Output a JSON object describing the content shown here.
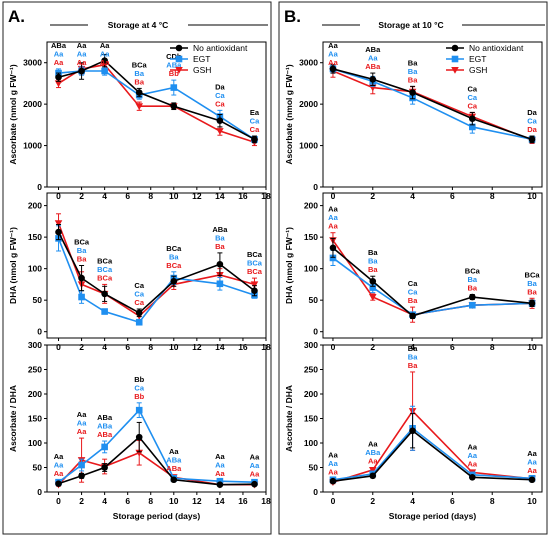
{
  "colors": {
    "no_antioxidant": "#000000",
    "egt": "#1f8ff0",
    "gsh": "#e8191c"
  },
  "panels": [
    {
      "label": "A.",
      "header": "Storage at 4 °C"
    },
    {
      "label": "B.",
      "header": "Storage at 10 °C"
    }
  ],
  "chart_data": [
    {
      "type": "line",
      "panel": "A.",
      "title": "Storage at 4 °C",
      "xlabel": "",
      "ylabel": "Ascorbate (nmol g FW⁻¹)",
      "xlim": [
        -1,
        18
      ],
      "ylim": [
        0,
        3500
      ],
      "xticks": [
        0,
        2,
        4,
        6,
        8,
        10,
        12,
        14,
        16,
        18
      ],
      "yticks": [
        0,
        1000,
        2000,
        3000
      ],
      "x": [
        0,
        2,
        4,
        7,
        10,
        14,
        17
      ],
      "legend": "top-right",
      "series": [
        {
          "name": "No antioxidant",
          "color": "#000000",
          "marker": "circle",
          "values": [
            2650,
            2800,
            3050,
            2280,
            1950,
            1600,
            1150
          ],
          "errors": [
            100,
            200,
            150,
            100,
            80,
            150,
            80
          ]
        },
        {
          "name": "EGT",
          "color": "#1f8ff0",
          "marker": "square",
          "values": [
            2750,
            2800,
            2800,
            2220,
            2400,
            1700,
            1150
          ],
          "errors": [
            100,
            100,
            100,
            100,
            180,
            150,
            80
          ]
        },
        {
          "name": "GSH",
          "color": "#e8191c",
          "marker": "triangle-down",
          "values": [
            2500,
            2850,
            2950,
            1950,
            1950,
            1350,
            1080
          ],
          "errors": [
            100,
            120,
            100,
            100,
            60,
            100,
            80
          ]
        }
      ],
      "annotations": [
        {
          "x": 0,
          "labels": [
            "ABa",
            "Aa",
            "Aa"
          ]
        },
        {
          "x": 2,
          "labels": [
            "Aa",
            "Aa",
            "Aa"
          ]
        },
        {
          "x": 4,
          "labels": [
            "Aa",
            "Aa",
            "Aa"
          ]
        },
        {
          "x": 7,
          "labels": [
            "BCa",
            "Ba",
            "Ba"
          ]
        },
        {
          "x": 10,
          "labels": [
            "CDb",
            "ABa",
            "Bb"
          ]
        },
        {
          "x": 14,
          "labels": [
            "Da",
            "Ca",
            "Ca"
          ]
        },
        {
          "x": 17,
          "labels": [
            "Ea",
            "Ca",
            "Ca"
          ]
        }
      ]
    },
    {
      "type": "line",
      "panel": "A.",
      "xlabel": "",
      "ylabel": "DHA (nmol g FW⁻¹)",
      "xlim": [
        -1,
        18
      ],
      "ylim": [
        -10,
        220
      ],
      "xticks": [
        0,
        2,
        4,
        6,
        8,
        10,
        12,
        14,
        16,
        18
      ],
      "yticks": [
        0,
        50,
        100,
        150,
        200
      ],
      "x": [
        0,
        2,
        4,
        7,
        10,
        14,
        17
      ],
      "series": [
        {
          "name": "No antioxidant",
          "color": "#000000",
          "marker": "circle",
          "values": [
            158,
            85,
            60,
            30,
            80,
            107,
            65
          ],
          "errors": [
            12,
            20,
            12,
            6,
            8,
            18,
            8
          ]
        },
        {
          "name": "EGT",
          "color": "#1f8ff0",
          "marker": "square",
          "values": [
            148,
            55,
            32,
            15,
            85,
            76,
            58
          ],
          "errors": [
            20,
            10,
            4,
            4,
            10,
            10,
            5
          ]
        },
        {
          "name": "GSH",
          "color": "#e8191c",
          "marker": "triangle-down",
          "values": [
            172,
            75,
            60,
            25,
            75,
            90,
            75
          ],
          "errors": [
            15,
            20,
            15,
            6,
            8,
            10,
            10
          ]
        }
      ],
      "annotations": [
        {
          "x": 2,
          "labels": [
            "BCa",
            "Ba",
            "Ba"
          ]
        },
        {
          "x": 4,
          "labels": [
            "BCa",
            "BCa",
            "BCa"
          ]
        },
        {
          "x": 7,
          "labels": [
            "Ca",
            "Ca",
            "Ca"
          ]
        },
        {
          "x": 10,
          "labels": [
            "BCa",
            "Ba",
            "BCa"
          ]
        },
        {
          "x": 14,
          "labels": [
            "ABa",
            "Ba",
            "Ba"
          ]
        },
        {
          "x": 17,
          "labels": [
            "BCa",
            "BCa",
            "BCa"
          ]
        }
      ]
    },
    {
      "type": "line",
      "panel": "A.",
      "xlabel": "Storage period (days)",
      "ylabel": "Ascorbate / DHA",
      "xlim": [
        -1,
        18
      ],
      "ylim": [
        0,
        300
      ],
      "xticks": [
        0,
        2,
        4,
        6,
        8,
        10,
        12,
        14,
        16,
        18
      ],
      "yticks": [
        0,
        50,
        100,
        150,
        200,
        250,
        300
      ],
      "x": [
        0,
        2,
        4,
        7,
        10,
        14,
        17
      ],
      "series": [
        {
          "name": "No antioxidant",
          "color": "#000000",
          "marker": "circle",
          "values": [
            17,
            33,
            50,
            112,
            25,
            15,
            16
          ],
          "errors": [
            3,
            5,
            8,
            30,
            3,
            2,
            2
          ]
        },
        {
          "name": "EGT",
          "color": "#1f8ff0",
          "marker": "square",
          "values": [
            20,
            55,
            92,
            167,
            28,
            22,
            20
          ],
          "errors": [
            4,
            12,
            12,
            15,
            4,
            3,
            3
          ]
        },
        {
          "name": "GSH",
          "color": "#e8191c",
          "marker": "triangle-down",
          "values": [
            15,
            65,
            52,
            80,
            30,
            15,
            15
          ],
          "errors": [
            3,
            45,
            15,
            25,
            5,
            2,
            2
          ]
        }
      ],
      "annotations": [
        {
          "x": 0,
          "labels": [
            "Aa",
            "Aa",
            "Aa"
          ]
        },
        {
          "x": 2,
          "labels": [
            "Aa",
            "Aa",
            "Aa"
          ]
        },
        {
          "x": 4,
          "labels": [
            "ABa",
            "ABa",
            "ABa"
          ]
        },
        {
          "x": 7,
          "labels": [
            "Bb",
            "Ca",
            "Bb"
          ]
        },
        {
          "x": 10,
          "labels": [
            "Aa",
            "ABa",
            "ABa"
          ]
        },
        {
          "x": 14,
          "labels": [
            "Aa",
            "Aa",
            "Aa"
          ]
        },
        {
          "x": 17,
          "labels": [
            "Aa",
            "Aa",
            "Aa"
          ]
        }
      ]
    },
    {
      "type": "line",
      "panel": "B.",
      "title": "Storage at 10 °C",
      "xlabel": "",
      "ylabel": "Ascorbate (nmol g FW⁻¹)",
      "xlim": [
        -0.5,
        10.5
      ],
      "ylim": [
        0,
        3500
      ],
      "xticks": [
        0,
        2,
        4,
        6,
        8,
        10
      ],
      "yticks": [
        0,
        1000,
        2000,
        3000
      ],
      "x": [
        0,
        2,
        4,
        7,
        10
      ],
      "legend": "top-right",
      "series": [
        {
          "name": "No antioxidant",
          "color": "#000000",
          "marker": "circle",
          "values": [
            2850,
            2600,
            2280,
            1650,
            1150
          ],
          "errors": [
            100,
            150,
            150,
            150,
            80
          ]
        },
        {
          "name": "EGT",
          "color": "#1f8ff0",
          "marker": "square",
          "values": [
            2850,
            2550,
            2150,
            1450,
            1150
          ],
          "errors": [
            100,
            120,
            150,
            150,
            80
          ]
        },
        {
          "name": "GSH",
          "color": "#e8191c",
          "marker": "triangle-down",
          "values": [
            2800,
            2400,
            2300,
            1700,
            1130
          ],
          "errors": [
            150,
            150,
            120,
            100,
            80
          ]
        }
      ],
      "annotations": [
        {
          "x": 0,
          "labels": [
            "Aa",
            "Aa",
            "Aa"
          ]
        },
        {
          "x": 2,
          "labels": [
            "ABa",
            "Aa",
            "ABa"
          ]
        },
        {
          "x": 4,
          "labels": [
            "Ba",
            "Ba",
            "Ba"
          ]
        },
        {
          "x": 7,
          "labels": [
            "Ca",
            "Ca",
            "Ca"
          ]
        },
        {
          "x": 10,
          "labels": [
            "Da",
            "Ca",
            "Da"
          ]
        }
      ]
    },
    {
      "type": "line",
      "panel": "B.",
      "xlabel": "",
      "ylabel": "DHA (nmol g FW⁻¹)",
      "xlim": [
        -0.5,
        10.5
      ],
      "ylim": [
        -10,
        220
      ],
      "xticks": [
        0,
        2,
        4,
        6,
        8,
        10
      ],
      "yticks": [
        0,
        50,
        100,
        150,
        200
      ],
      "x": [
        0,
        2,
        4,
        7,
        10
      ],
      "series": [
        {
          "name": "No antioxidant",
          "color": "#000000",
          "marker": "circle",
          "values": [
            133,
            80,
            25,
            55,
            45
          ],
          "errors": [
            15,
            8,
            4,
            4,
            5
          ]
        },
        {
          "name": "EGT",
          "color": "#1f8ff0",
          "marker": "square",
          "values": [
            117,
            70,
            27,
            42,
            45
          ],
          "errors": [
            12,
            8,
            4,
            4,
            5
          ]
        },
        {
          "name": "GSH",
          "color": "#e8191c",
          "marker": "triangle-down",
          "values": [
            145,
            55,
            27,
            42,
            45
          ],
          "errors": [
            12,
            5,
            12,
            4,
            8
          ]
        }
      ],
      "annotations": [
        {
          "x": 0,
          "labels": [
            "Aa",
            "Aa",
            "Aa"
          ]
        },
        {
          "x": 2,
          "labels": [
            "Ba",
            "Ba",
            "Ba"
          ]
        },
        {
          "x": 4,
          "labels": [
            "Ca",
            "Ca",
            "Ba"
          ]
        },
        {
          "x": 7,
          "labels": [
            "BCa",
            "Ba",
            "Ba"
          ]
        },
        {
          "x": 10,
          "labels": [
            "BCa",
            "Ba",
            "Ba"
          ]
        }
      ]
    },
    {
      "type": "line",
      "panel": "B.",
      "xlabel": "Storage period (days)",
      "ylabel": "Ascorbate / DHA",
      "xlim": [
        -0.5,
        10.5
      ],
      "ylim": [
        0,
        300
      ],
      "xticks": [
        0,
        2,
        4,
        6,
        8,
        10
      ],
      "yticks": [
        0,
        50,
        100,
        150,
        200,
        250,
        300
      ],
      "x": [
        0,
        2,
        4,
        7,
        10
      ],
      "series": [
        {
          "name": "No antioxidant",
          "color": "#000000",
          "marker": "circle",
          "values": [
            22,
            33,
            125,
            30,
            25
          ],
          "errors": [
            3,
            4,
            35,
            3,
            3
          ]
        },
        {
          "name": "EGT",
          "color": "#1f8ff0",
          "marker": "square",
          "values": [
            25,
            37,
            130,
            35,
            28
          ],
          "errors": [
            3,
            4,
            45,
            4,
            3
          ]
        },
        {
          "name": "GSH",
          "color": "#e8191c",
          "marker": "triangle-down",
          "values": [
            20,
            45,
            165,
            40,
            27
          ],
          "errors": [
            3,
            5,
            80,
            4,
            3
          ]
        }
      ],
      "annotations": [
        {
          "x": 0,
          "labels": [
            "Aa",
            "Aa",
            "Aa"
          ]
        },
        {
          "x": 2,
          "labels": [
            "Aa",
            "ABa",
            "Aa"
          ]
        },
        {
          "x": 4,
          "labels": [
            "Ba",
            "Ba",
            "Ba"
          ]
        },
        {
          "x": 7,
          "labels": [
            "Aa",
            "Aa",
            "Aa"
          ]
        },
        {
          "x": 10,
          "labels": [
            "Aa",
            "Aa",
            "Aa"
          ]
        }
      ]
    }
  ]
}
